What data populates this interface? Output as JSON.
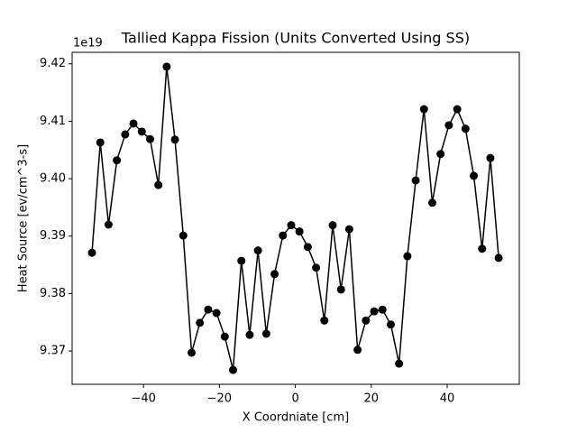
{
  "chart_data": {
    "type": "line",
    "title": "Tallied Kappa Fission (Units Converted Using SS)",
    "x_label": "X Coordniate [cm]",
    "y_label": "Heat Source [ev/cm^3-s]",
    "y_offset_label": "1e19",
    "x": [
      -53.57,
      -51.38,
      -49.2,
      -47.01,
      -44.82,
      -42.64,
      -40.45,
      -38.26,
      -36.08,
      -33.89,
      -31.71,
      -29.52,
      -27.33,
      -25.15,
      -22.96,
      -20.77,
      -18.59,
      -16.4,
      -14.21,
      -12.03,
      -9.84,
      -7.65,
      -5.47,
      -3.28,
      -1.09,
      1.09,
      3.28,
      5.47,
      7.65,
      9.84,
      12.03,
      14.21,
      16.4,
      18.59,
      20.77,
      22.96,
      25.15,
      27.33,
      29.52,
      31.71,
      33.89,
      36.08,
      38.26,
      40.45,
      42.64,
      44.82,
      47.01,
      49.2,
      51.38,
      53.57
    ],
    "series": [
      {
        "color": "#000000",
        "values": [
          9.3871,
          9.4063,
          9.392,
          9.4032,
          9.4077,
          9.4096,
          9.4082,
          9.4069,
          9.3989,
          9.4195,
          9.4068,
          9.3901,
          9.3697,
          9.3749,
          9.3772,
          9.3766,
          9.3725,
          9.3667,
          9.3857,
          9.3728,
          9.3875,
          9.373,
          9.3834,
          9.3901,
          9.3919,
          9.3908,
          9.3881,
          9.3845,
          9.3753,
          9.3919,
          9.3807,
          9.3912,
          9.3702,
          9.3753,
          9.3769,
          9.3772,
          9.3746,
          9.3678,
          9.3865,
          9.3997,
          9.4121,
          9.3958,
          9.4043,
          9.4093,
          9.4121,
          9.4087,
          9.4005,
          9.3878,
          9.4036,
          9.3862
        ]
      }
    ],
    "xlim": [
      -58.8,
      59.0
    ],
    "ylim": [
      9.3642,
      9.422
    ],
    "xticks": [
      {
        "value": -40,
        "label": "−40"
      },
      {
        "value": -20,
        "label": "−20"
      },
      0,
      20,
      40
    ],
    "yticks": [
      9.37,
      9.38,
      9.39,
      {
        "value": 9.4,
        "label": "9.40"
      },
      9.41,
      9.42
    ],
    "grid": false
  }
}
